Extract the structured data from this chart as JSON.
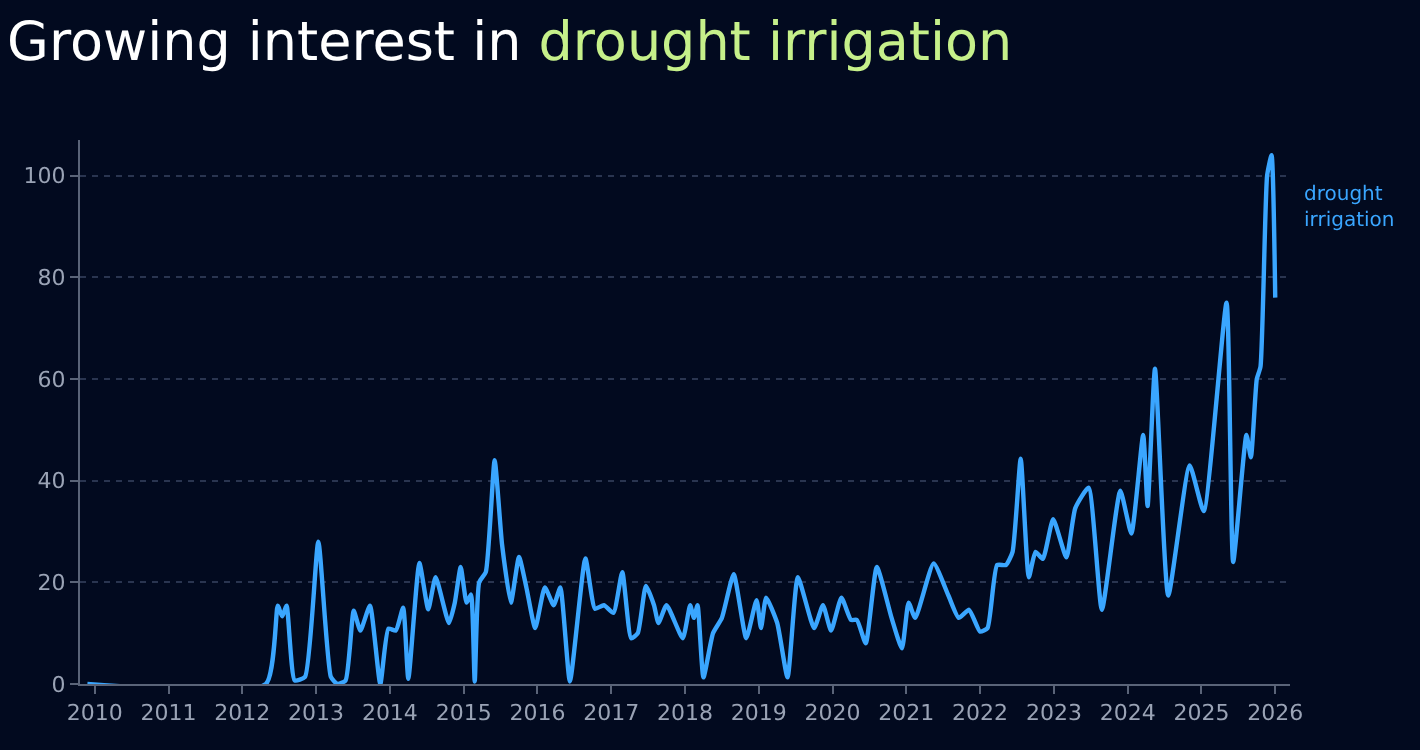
{
  "chart_data": {
    "type": "line",
    "title": "Growing interest in drought irrigation",
    "xlim": [
      2009.8,
      2026.2
    ],
    "xticks": [
      2010,
      2011,
      2012,
      2013,
      2014,
      2015,
      2016,
      2017,
      2018,
      2019,
      2020,
      2021,
      2022,
      2023,
      2024,
      2025,
      2026
    ],
    "ylim": [
      0,
      107
    ],
    "yticks": [
      0,
      20,
      40,
      60,
      80,
      100
    ],
    "grid": "y",
    "legend": false,
    "marker": "none",
    "line_style": "solid",
    "series": [
      {
        "name": "drought irrigation",
        "color": "#3aa6ff",
        "x": [
          2009.9,
          2012.32,
          2012.48,
          2012.54,
          2012.6,
          2012.71,
          2012.85,
          2013.03,
          2013.2,
          2013.29,
          2013.4,
          2013.51,
          2013.6,
          2013.73,
          2013.87,
          2013.98,
          2014.08,
          2014.18,
          2014.25,
          2014.4,
          2014.52,
          2014.62,
          2014.8,
          2014.88,
          2014.96,
          2015.04,
          2015.1,
          2015.15,
          2015.21,
          2015.3,
          2015.42,
          2015.52,
          2015.64,
          2015.75,
          2015.85,
          2015.97,
          2016.1,
          2016.22,
          2016.31,
          2016.44,
          2016.65,
          2016.78,
          2016.9,
          2017.03,
          2017.15,
          2017.27,
          2017.36,
          2017.47,
          2017.58,
          2017.64,
          2017.75,
          2017.97,
          2018.07,
          2018.12,
          2018.17,
          2018.25,
          2018.38,
          2018.5,
          2018.66,
          2018.83,
          2018.97,
          2019.03,
          2019.1,
          2019.25,
          2019.39,
          2019.53,
          2019.75,
          2019.87,
          2019.98,
          2020.12,
          2020.25,
          2020.33,
          2020.45,
          2020.6,
          2020.8,
          2020.94,
          2021.03,
          2021.12,
          2021.37,
          2021.57,
          2021.71,
          2021.85,
          2022.0,
          2022.1,
          2022.23,
          2022.35,
          2022.44,
          2022.55,
          2022.66,
          2022.75,
          2022.85,
          2022.99,
          2023.17,
          2023.29,
          2023.47,
          2023.65,
          2023.9,
          2024.05,
          2024.21,
          2024.27,
          2024.37,
          2024.55,
          2024.84,
          2025.03,
          2025.34,
          2025.43,
          2025.61,
          2025.67,
          2025.75,
          2025.8,
          2025.89,
          2025.95,
          2026.0
        ],
        "values": [
          0,
          0,
          15.4,
          13.3,
          15.4,
          0.7,
          1.4,
          28,
          1.4,
          0,
          0.7,
          14.4,
          10.5,
          15.4,
          0,
          10.9,
          10.5,
          15,
          1,
          23.8,
          14.7,
          21,
          12,
          16,
          23,
          16,
          17.6,
          0.5,
          20,
          22,
          44,
          27.5,
          16,
          25,
          19,
          11,
          19,
          15.5,
          19,
          0.5,
          24.7,
          14.8,
          15.5,
          14,
          22,
          9,
          10,
          19.3,
          15.5,
          12,
          15.5,
          9,
          15.5,
          13,
          15.5,
          1.3,
          10,
          13,
          21.6,
          9,
          16.5,
          11,
          17,
          12,
          1.3,
          21,
          11,
          15.5,
          10.5,
          17,
          12.6,
          12.6,
          8,
          23,
          13,
          7,
          16,
          13,
          23.7,
          17.4,
          13,
          14.6,
          10.3,
          11,
          23.4,
          23.4,
          26,
          44.3,
          21,
          26,
          24.6,
          32.4,
          24.9,
          34.6,
          38.6,
          14.6,
          38,
          29.6,
          49,
          35,
          62,
          17.4,
          43,
          34,
          75,
          24,
          49,
          44.6,
          60,
          62.4,
          100,
          104,
          76
        ]
      }
    ]
  }
}
